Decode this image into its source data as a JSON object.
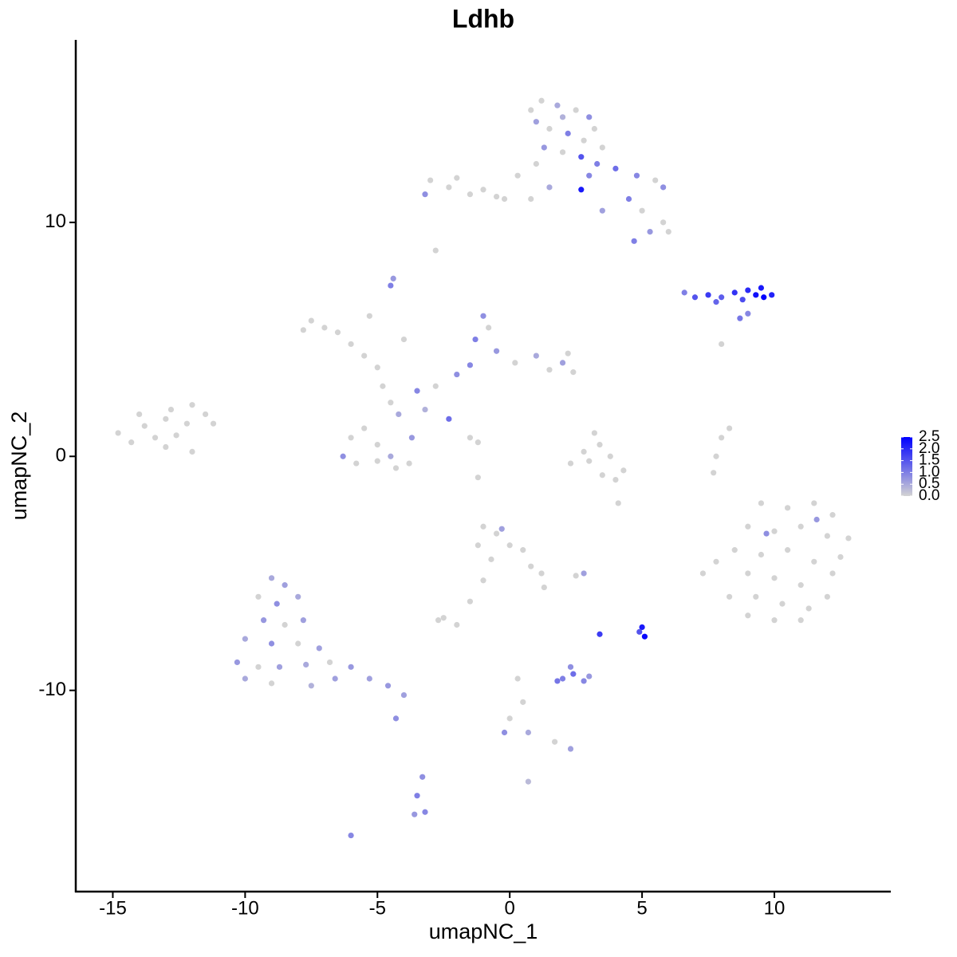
{
  "chart_data": {
    "type": "scatter",
    "title": "Ldhb",
    "x_label": "umapNC_1",
    "y_label": "umapNC_2",
    "xlim": [
      -16.4,
      14.4
    ],
    "ylim": [
      -18.6,
      17.8
    ],
    "xticks": [
      -15,
      -10,
      -5,
      0,
      5,
      10
    ],
    "yticks": [
      -10,
      0,
      10
    ],
    "color_scale": {
      "low": "#d3d3d3",
      "high": "#0000ff",
      "lim": [
        0,
        2.5
      ],
      "ticks": [
        {
          "value": 0,
          "label": "0.0"
        },
        {
          "value": 0.5,
          "label": "0.5"
        },
        {
          "value": 1,
          "label": "1.0"
        },
        {
          "value": 1.5,
          "label": "1.5"
        },
        {
          "value": 2,
          "label": "2.0"
        },
        {
          "value": 2.5,
          "label": "2.5"
        }
      ]
    },
    "x": [
      1.2,
      1.8,
      2.5,
      3.0,
      1.0,
      1.5,
      2.2,
      2.8,
      3.2,
      1.3,
      2.0,
      2.7,
      2.7,
      3.3,
      4.0,
      4.8,
      5.5,
      5.8,
      4.5,
      5.0,
      5.8,
      5.3,
      4.7,
      6.0,
      3.5,
      0.8,
      2.0,
      3.5,
      1.0,
      0.3,
      1.5,
      0.8,
      -0.2,
      3.0,
      -3.0,
      -2.3,
      -1.5,
      -1.0,
      -3.2,
      -2.0,
      -0.5,
      -2.8,
      -4.5,
      -4.4,
      6.6,
      7.0,
      7.5,
      8.0,
      8.5,
      9.0,
      9.3,
      9.6,
      9.9,
      9.5,
      8.8,
      8.7,
      9.0,
      7.8,
      8.0,
      -7.5,
      -7.0,
      -6.5,
      -7.8,
      -6.0,
      -5.5,
      -5.0,
      -4.8,
      -4.5,
      -4.2,
      -6.0,
      -5.5,
      -5.0,
      -6.3,
      -5.8,
      -4.5,
      -3.7,
      -3.8,
      -4.3,
      -5.0,
      -3.5,
      -2.8,
      -2.0,
      -1.5,
      -1.3,
      -1.0,
      -0.8,
      -0.5,
      0.2,
      1.0,
      1.5,
      2.0,
      2.4,
      2.2,
      -2.3,
      -1.5,
      -1.2,
      -3.2,
      -4.0,
      -5.3,
      -14.8,
      -14.3,
      -13.8,
      -13.4,
      -13.0,
      -12.6,
      -12.2,
      -12.0,
      -11.5,
      -11.2,
      -13.0,
      -12.8,
      -14.0,
      -12.0,
      3.2,
      3.4,
      3.8,
      3.0,
      2.3,
      3.5,
      4.0,
      4.3,
      2.8,
      4.1,
      8.0,
      8.3,
      7.8,
      7.7,
      -1.2,
      9.5,
      10.5,
      11.5,
      12.2,
      9.0,
      10.0,
      11.0,
      12.0,
      12.8,
      8.5,
      9.5,
      10.5,
      11.5,
      12.5,
      9.0,
      10.0,
      11.0,
      12.2,
      8.3,
      9.3,
      10.3,
      11.3,
      12.0,
      9.0,
      10.0,
      11.0,
      7.8,
      7.3,
      9.7,
      11.6,
      -1.0,
      -0.5,
      0.0,
      -1.2,
      0.5,
      0.8,
      1.2,
      1.3,
      -0.3,
      -0.7,
      -1.0,
      -1.5,
      -2.5,
      -2.0,
      -2.7,
      2.8,
      2.5,
      3.4,
      5.0,
      5.1,
      4.9,
      2.0,
      2.4,
      2.8,
      2.3,
      1.8,
      3.0,
      0.3,
      0.5,
      0.0,
      -0.2,
      0.7,
      2.3,
      1.7,
      0.7,
      -9.0,
      -8.5,
      -9.5,
      -8.8,
      -8.0,
      -9.3,
      -8.5,
      -7.8,
      -10.0,
      -9.0,
      -8.0,
      -7.2,
      -10.3,
      -9.5,
      -8.7,
      -7.7,
      -6.8,
      -6.0,
      -5.3,
      -4.6,
      -4.0,
      -10.0,
      -9.0,
      -7.5,
      -6.6,
      -4.3,
      -3.3,
      -3.5,
      -3.2,
      -3.6,
      -6.0
    ],
    "y": [
      15.2,
      15.0,
      14.8,
      14.5,
      14.3,
      14.0,
      13.8,
      13.5,
      14.0,
      13.2,
      13.0,
      12.8,
      11.4,
      12.5,
      12.3,
      12.0,
      11.8,
      11.5,
      11.0,
      10.5,
      10.0,
      9.6,
      9.2,
      9.6,
      10.5,
      14.8,
      14.5,
      13.2,
      12.5,
      12.0,
      11.5,
      11.0,
      11.0,
      12.0,
      11.8,
      11.5,
      11.2,
      11.4,
      11.2,
      11.9,
      11.1,
      8.8,
      7.3,
      7.6,
      7.0,
      6.8,
      6.9,
      6.8,
      7.0,
      7.1,
      6.9,
      6.8,
      6.9,
      7.2,
      6.7,
      5.9,
      6.1,
      6.6,
      4.8,
      5.8,
      5.5,
      5.3,
      5.4,
      4.8,
      4.3,
      3.8,
      3.0,
      2.3,
      1.8,
      0.8,
      1.2,
      0.5,
      0.0,
      -0.3,
      0.0,
      0.8,
      -0.3,
      -0.5,
      -0.2,
      2.8,
      3.0,
      3.5,
      3.9,
      5.0,
      6.0,
      5.5,
      4.5,
      4.0,
      4.3,
      3.7,
      4.0,
      3.6,
      4.4,
      1.6,
      0.8,
      0.6,
      2.0,
      5.0,
      6.0,
      1.0,
      0.6,
      1.3,
      0.8,
      1.6,
      0.9,
      1.4,
      2.2,
      1.8,
      1.4,
      0.4,
      2.0,
      1.8,
      0.2,
      1.0,
      0.5,
      0.0,
      -0.2,
      -0.3,
      -0.8,
      -1.0,
      -0.6,
      0.2,
      -2.0,
      0.8,
      1.2,
      0.0,
      -0.7,
      -0.9,
      -2.0,
      -2.2,
      -2.0,
      -2.5,
      -3.0,
      -3.2,
      -3.0,
      -3.4,
      -3.5,
      -4.0,
      -4.2,
      -4.0,
      -4.5,
      -4.3,
      -5.0,
      -5.2,
      -5.5,
      -5.0,
      -6.0,
      -6.0,
      -6.3,
      -6.5,
      -6.0,
      -6.8,
      -7.0,
      -7.0,
      -4.5,
      -5.0,
      -3.3,
      -2.7,
      -3.0,
      -3.3,
      -3.8,
      -3.8,
      -4.0,
      -4.7,
      -5.0,
      -5.6,
      -3.1,
      -4.4,
      -5.3,
      -6.2,
      -6.9,
      -7.2,
      -7.0,
      -5.0,
      -5.1,
      -7.6,
      -7.3,
      -7.7,
      -7.5,
      -9.5,
      -9.3,
      -9.6,
      -9.0,
      -9.6,
      -9.4,
      -9.5,
      -10.5,
      -11.2,
      -11.8,
      -11.8,
      -12.5,
      -12.2,
      -13.9,
      -5.2,
      -5.5,
      -6.0,
      -6.3,
      -6.0,
      -7.0,
      -7.2,
      -7.0,
      -7.8,
      -8.0,
      -8.0,
      -8.2,
      -8.8,
      -9.0,
      -9.0,
      -8.9,
      -8.8,
      -9.0,
      -9.5,
      -9.8,
      -10.2,
      -9.5,
      -9.7,
      -9.8,
      -9.5,
      -11.2,
      -13.7,
      -14.5,
      -15.2,
      -15.3,
      -16.2
    ],
    "values": [
      0,
      0.5,
      0,
      0.8,
      0.6,
      0,
      1.0,
      0,
      0,
      0.7,
      0,
      1.5,
      2.2,
      1.0,
      1.2,
      0.9,
      0,
      0.8,
      1.0,
      0,
      0,
      0.7,
      1.0,
      0,
      0.6,
      0,
      0.4,
      0,
      0,
      0,
      0.5,
      0,
      0,
      0.9,
      0,
      0,
      0,
      0,
      0.8,
      0,
      0,
      0,
      1.0,
      0.7,
      1.0,
      1.5,
      1.8,
      1.4,
      1.9,
      2.0,
      2.3,
      2.6,
      2.1,
      2.2,
      1.6,
      1.1,
      0.9,
      1.3,
      0,
      0,
      0,
      0,
      0,
      0,
      0,
      0,
      0,
      0,
      0.5,
      0,
      0,
      0,
      0.8,
      0,
      0.5,
      0.7,
      0,
      0,
      0,
      0.9,
      0,
      0.8,
      0.9,
      1.0,
      0.8,
      0,
      0.7,
      0,
      0.5,
      0,
      0.6,
      0,
      0,
      1.2,
      0,
      0,
      0.4,
      0,
      0,
      0,
      0,
      0,
      0,
      0,
      0,
      0,
      0,
      0,
      0,
      0,
      0,
      0,
      0,
      0,
      0,
      0,
      0,
      0,
      0,
      0,
      0,
      0,
      0,
      0,
      0,
      0,
      0,
      0,
      0,
      0,
      0,
      0,
      0,
      0,
      0,
      0,
      0,
      0,
      0,
      0,
      0,
      0,
      0,
      0,
      0,
      0,
      0,
      0,
      0,
      0,
      0,
      0,
      0,
      0,
      0,
      0,
      0.8,
      0.7,
      0,
      0,
      0,
      0,
      0,
      0,
      0,
      0,
      0.6,
      0,
      0,
      0,
      0,
      0,
      0,
      0.6,
      0,
      1.8,
      2.2,
      2.4,
      1.5,
      1.0,
      1.2,
      0.9,
      0.8,
      1.1,
      0.7,
      0,
      0,
      0,
      0.8,
      0.5,
      0.6,
      0,
      0.3,
      0.5,
      0.6,
      0,
      0.8,
      0.5,
      0.7,
      0,
      0.6,
      0.5,
      0.8,
      0,
      0.6,
      0.7,
      0,
      0.6,
      0.5,
      0,
      0.7,
      0.6,
      0.7,
      0.6,
      0.5,
      0,
      0.4,
      0.6,
      0.8,
      0.8,
      1.0,
      0.9,
      0.7,
      0.9
    ]
  }
}
